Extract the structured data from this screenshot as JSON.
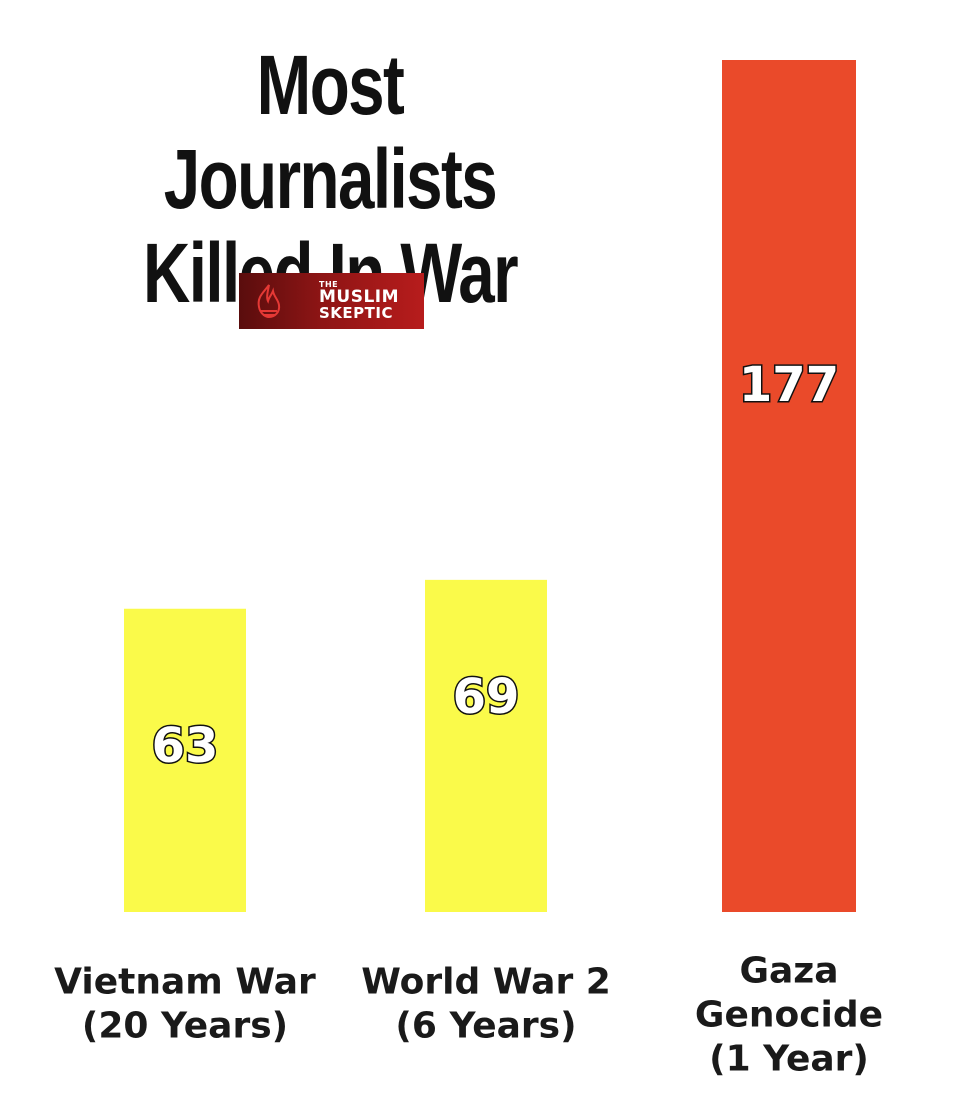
{
  "chart_data": {
    "type": "bar",
    "title_lines": [
      "Most Journalists",
      "Killed In War"
    ],
    "categories": [
      [
        "Vietnam War",
        "(20 Years)"
      ],
      [
        "World War 2",
        "(6 Years)"
      ],
      [
        "Gaza",
        "Genocide",
        "(1 Year)"
      ]
    ],
    "values": [
      63,
      69,
      177
    ],
    "colors": [
      "#fafa4a",
      "#fafa4a",
      "#ea4a2a"
    ],
    "xlabel": "",
    "ylabel": "",
    "ylim": [
      0,
      177
    ],
    "grid": false,
    "legend": "none"
  },
  "logo": {
    "small_text": "THE",
    "line1": "MUSLIM",
    "line2": "SKEPTIC",
    "icon": "flame-logo-icon",
    "background": "#8e1515"
  }
}
